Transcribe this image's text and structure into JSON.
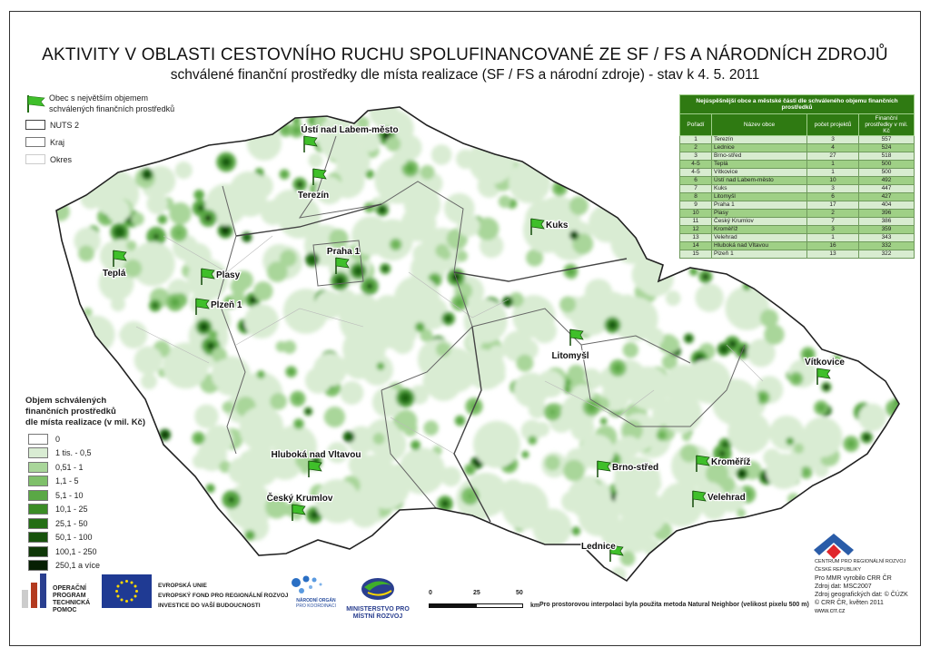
{
  "title": "AKTIVITY V OBLASTI CESTOVNÍHO RUCHU SPOLUFINANCOVANÉ ZE SF / FS A NÁRODNÍCH ZDROJŮ",
  "subtitle": "schválené finanční prostředky dle místa realizace (SF / FS a národní zdroje) - stav k 4. 5. 2011",
  "legend_top": {
    "flag_label_1": "Obec s největším objemem",
    "flag_label_2": "schválených finančních prostředků",
    "nuts2": "NUTS 2",
    "kraj": "Kraj",
    "okres": "Okres"
  },
  "legend_classes": {
    "heading_1": "Objem schválených",
    "heading_2": "finančních prostředků",
    "heading_3": "dle místa realizace (v mil. Kč)",
    "items": [
      {
        "label": "0",
        "color": "#ffffff"
      },
      {
        "label": "1 tis. - 0,5",
        "color": "#d9ecd3"
      },
      {
        "label": "0,51 - 1",
        "color": "#a9d69a"
      },
      {
        "label": "1,1 - 5",
        "color": "#7fc06a"
      },
      {
        "label": "5,1 - 10",
        "color": "#5aa845"
      },
      {
        "label": "10,1 - 25",
        "color": "#3b8c26"
      },
      {
        "label": "25,1 - 50",
        "color": "#236e14"
      },
      {
        "label": "50,1 - 100",
        "color": "#17520c"
      },
      {
        "label": "100,1 - 250",
        "color": "#0e3707"
      },
      {
        "label": "250,1 a více",
        "color": "#061f03"
      }
    ]
  },
  "ranking": {
    "caption": "Nejúspěšnější obce a městské části dle schváleného objemu finančních prostředků",
    "headers": [
      "Pořadí",
      "Název obce",
      "počet projektů",
      "Finanční prostředky v mil. Kč"
    ],
    "rows": [
      [
        "1",
        "Terezín",
        "3",
        "557"
      ],
      [
        "2",
        "Lednice",
        "4",
        "524"
      ],
      [
        "3",
        "Brno-střed",
        "27",
        "518"
      ],
      [
        "4-5",
        "Teplá",
        "1",
        "500"
      ],
      [
        "4-5",
        "Vítkovice",
        "1",
        "500"
      ],
      [
        "6",
        "Ústí nad Labem-město",
        "10",
        "492"
      ],
      [
        "7",
        "Kuks",
        "3",
        "447"
      ],
      [
        "8",
        "Litomyšl",
        "6",
        "427"
      ],
      [
        "9",
        "Praha 1",
        "17",
        "404"
      ],
      [
        "10",
        "Plasy",
        "2",
        "396"
      ],
      [
        "11",
        "Český Krumlov",
        "7",
        "386"
      ],
      [
        "12",
        "Kroměříž",
        "3",
        "359"
      ],
      [
        "13",
        "Velehrad",
        "1",
        "343"
      ],
      [
        "14",
        "Hluboká nad Vltavou",
        "16",
        "332"
      ],
      [
        "15",
        "Plzeň 1",
        "13",
        "322"
      ]
    ]
  },
  "places": [
    "Ústí nad Labem-město",
    "Terezín",
    "Kuks",
    "Teplá",
    "Plasy",
    "Praha 1",
    "Plzeň 1",
    "Litomyšl",
    "Vítkovice",
    "Kroměříž",
    "Brno-střed",
    "Velehrad",
    "Hluboká nad Vltavou",
    "Český Krumlov",
    "Lednice"
  ],
  "scale": {
    "t0": "0",
    "t25": "25",
    "t50": "50",
    "unit": "km"
  },
  "note": "Pro prostorovou interpolaci byla použita metoda Natural Neighbor (velikost pixelu 500 m)",
  "footer": {
    "op_1": "OPERAČNÍ",
    "op_2": "PROGRAM",
    "op_3": "TECHNICKÁ",
    "op_4": "POMOC",
    "eu_1": "EVROPSKÁ UNIE",
    "eu_2": "EVROPSKÝ FOND PRO REGIONÁLNÍ ROZVOJ",
    "eu_3": "INVESTICE DO VAŠÍ BUDOUCNOSTI",
    "nok_1": "NÁRODNÍ ORGÁN",
    "nok_2": "PRO KOORDINACI",
    "mmr": "MINISTERSTVO PRO MÍSTNÍ ROZVOJ",
    "crr_1": "CENTRUM PRO REGIONÁLNÍ ROZVOJ",
    "crr_2": "ČESKÉ REPUBLIKY",
    "crr_3": "Pro MMR vyrobilo CRR ČR",
    "crr_4": "Zdroj dat: MSC2007",
    "crr_5": "Zdroj geografických dat: © ČÚZK",
    "crr_6": "© CRR ČR, květen 2011",
    "crr_7": "www.crr.cz"
  },
  "colors": {
    "flag": "#3fbf2a",
    "table_header": "#2f7a12",
    "eu_blue": "#1f3a93",
    "eu_star": "#ffd800"
  }
}
